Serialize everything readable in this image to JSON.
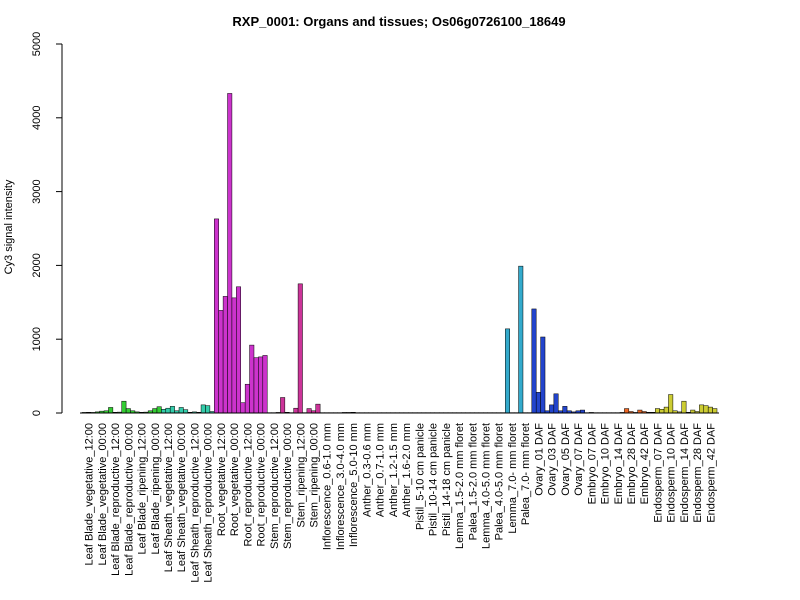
{
  "chart_data": {
    "type": "bar",
    "title": "RXP_0001: Organs and tissues; Os06g0726100_18649",
    "xlabel": "",
    "ylabel": "Cy3 signal intensity",
    "ylim": [
      0,
      5000
    ],
    "yticks": [
      0,
      1000,
      2000,
      3000,
      4000,
      5000
    ],
    "grid": false,
    "legend": "none",
    "groups": [
      {
        "label": "Leaf Blade_vegetative_12:00",
        "color": "#33cc33",
        "values": [
          8,
          10,
          8
        ]
      },
      {
        "label": "Leaf Blade_vegetative_00:00",
        "color": "#33cc33",
        "values": [
          15,
          25,
          30
        ]
      },
      {
        "label": "Leaf Blade_reproductive_12:00",
        "color": "#33cc33",
        "values": [
          75,
          10,
          12
        ]
      },
      {
        "label": "Leaf Blade_reproductive_00:00",
        "color": "#33cc33",
        "values": [
          160,
          60,
          30
        ]
      },
      {
        "label": "Leaf Blade_ripening_12:00",
        "color": "#33cc33",
        "values": [
          15,
          10,
          12
        ]
      },
      {
        "label": "Leaf Blade_ripening_00:00",
        "color": "#33cc33",
        "values": [
          30,
          60,
          85
        ]
      },
      {
        "label": "Leaf Sheath_vegetative_12:00",
        "color": "#33ccaa",
        "values": [
          50,
          65,
          90
        ]
      },
      {
        "label": "Leaf Sheath_vegetative_00:00",
        "color": "#33ccaa",
        "values": [
          30,
          75,
          45
        ]
      },
      {
        "label": "Leaf Sheath_reproductive_12:00",
        "color": "#33ccaa",
        "values": [
          10,
          15,
          10
        ]
      },
      {
        "label": "Leaf Sheath_reproductive_00:00",
        "color": "#33ccaa",
        "values": [
          110,
          100,
          20
        ]
      },
      {
        "label": "Root_vegetative_12:00",
        "color": "#cc33cc",
        "values": [
          2630,
          1390,
          1580
        ]
      },
      {
        "label": "Root_vegetative_00:00",
        "color": "#cc33cc",
        "values": [
          4330,
          1560,
          1710
        ]
      },
      {
        "label": "Root_reproductive_12:00",
        "color": "#cc33cc",
        "values": [
          140,
          390,
          920
        ]
      },
      {
        "label": "Root_reproductive_00:00",
        "color": "#cc33cc",
        "values": [
          750,
          760,
          780
        ]
      },
      {
        "label": "Stem_reproductive_12:00",
        "color": "#cc3399",
        "values": [
          5,
          5,
          8
        ]
      },
      {
        "label": "Stem_reproductive_00:00",
        "color": "#cc3399",
        "values": [
          210,
          10,
          5
        ]
      },
      {
        "label": "Stem_ripening_12:00",
        "color": "#cc3399",
        "values": [
          65,
          1750,
          5
        ]
      },
      {
        "label": "Stem_ripening_00:00",
        "color": "#cc3399",
        "values": [
          60,
          30,
          120
        ]
      },
      {
        "label": "Inflorescence_0.6-1.0 mm",
        "color": "#888888",
        "values": [
          5,
          5,
          5
        ]
      },
      {
        "label": "Inflorescence_3.0-4.0 mm",
        "color": "#888888",
        "values": [
          5,
          5,
          8
        ]
      },
      {
        "label": "Inflorescence_5.0-10 mm",
        "color": "#888888",
        "values": [
          8,
          10,
          5
        ]
      },
      {
        "label": "Anther_0.3-0.6 mm",
        "color": "#888888",
        "values": [
          5,
          5,
          5
        ]
      },
      {
        "label": "Anther_0.7-1.0 mm",
        "color": "#888888",
        "values": [
          5,
          5,
          5
        ]
      },
      {
        "label": "Anther_1.2-1.5 mm",
        "color": "#888888",
        "values": [
          5,
          5,
          5
        ]
      },
      {
        "label": "Anther_1.6-2.0 mm",
        "color": "#888888",
        "values": [
          5,
          5,
          5
        ]
      },
      {
        "label": "Pistil_5-10 cm panicle",
        "color": "#888888",
        "values": [
          5,
          5,
          5
        ]
      },
      {
        "label": "Pistil_10-14 cm panicle",
        "color": "#888888",
        "values": [
          5,
          5,
          5
        ]
      },
      {
        "label": "Pistil_14-18 cm panicle",
        "color": "#888888",
        "values": [
          5,
          5,
          5
        ]
      },
      {
        "label": "Lemma_1.5-2.0 mm floret",
        "color": "#888888",
        "values": [
          5,
          5,
          5
        ]
      },
      {
        "label": "Palea_1.5-2.0 mm floret",
        "color": "#888888",
        "values": [
          5,
          5,
          5
        ]
      },
      {
        "label": "Lemma_4.0-5.0 mm floret",
        "color": "#888888",
        "values": [
          5,
          5,
          5
        ]
      },
      {
        "label": "Palea_4.0-5.0 mm floret",
        "color": "#888888",
        "values": [
          5,
          5,
          5
        ]
      },
      {
        "label": "Lemma_7.0- mm floret",
        "color": "#33aacc",
        "values": [
          1140,
          5,
          5
        ]
      },
      {
        "label": "Palea_7.0- mm floret",
        "color": "#33aacc",
        "values": [
          1990,
          5,
          5
        ]
      },
      {
        "label": "Ovary_01 DAF",
        "color": "#2244cc",
        "values": [
          1410,
          280,
          1030
        ]
      },
      {
        "label": "Ovary_03 DAF",
        "color": "#2244cc",
        "values": [
          30,
          110,
          260
        ]
      },
      {
        "label": "Ovary_05 DAF",
        "color": "#2244cc",
        "values": [
          30,
          90,
          30
        ]
      },
      {
        "label": "Ovary_07 DAF",
        "color": "#2244cc",
        "values": [
          15,
          30,
          40
        ]
      },
      {
        "label": "Embryo_07 DAF",
        "color": "#888888",
        "values": [
          5,
          8,
          5
        ]
      },
      {
        "label": "Embryo_10 DAF",
        "color": "#888888",
        "values": [
          5,
          5,
          5
        ]
      },
      {
        "label": "Embryo_14 DAF",
        "color": "#888888",
        "values": [
          5,
          5,
          8
        ]
      },
      {
        "label": "Embryo_28 DAF",
        "color": "#ee6622",
        "values": [
          60,
          20,
          8
        ]
      },
      {
        "label": "Embryo_42 DAF",
        "color": "#ee6622",
        "values": [
          40,
          20,
          10
        ]
      },
      {
        "label": "Endosperm_07 DAF",
        "color": "#cccc33",
        "values": [
          10,
          60,
          50
        ]
      },
      {
        "label": "Endosperm_10 DAF",
        "color": "#cccc33",
        "values": [
          80,
          250,
          30
        ]
      },
      {
        "label": "Endosperm_14 DAF",
        "color": "#cccc33",
        "values": [
          15,
          160,
          10
        ]
      },
      {
        "label": "Endosperm_28 DAF",
        "color": "#cccc33",
        "values": [
          40,
          20,
          110
        ]
      },
      {
        "label": "Endosperm_42 DAF",
        "color": "#cccc33",
        "values": [
          100,
          80,
          60
        ]
      }
    ]
  }
}
